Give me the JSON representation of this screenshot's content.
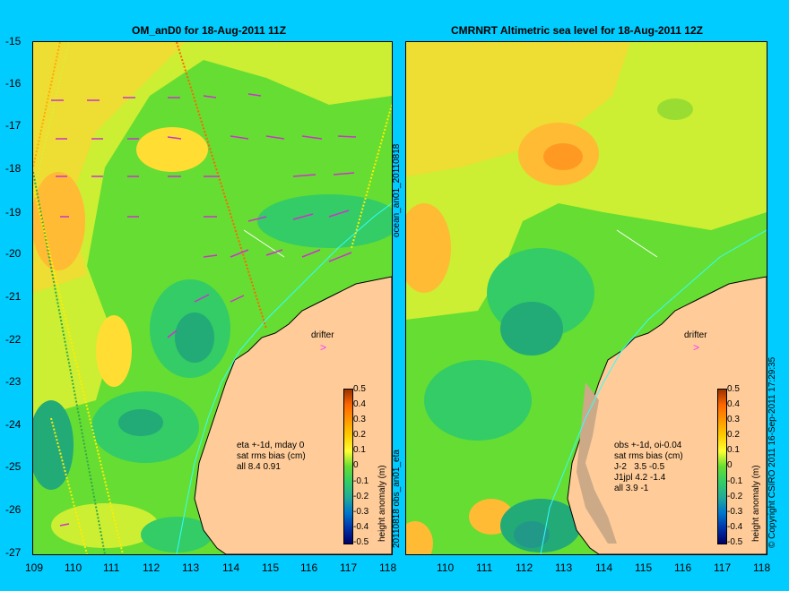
{
  "left_panel": {
    "title": "OM_anD0 for 18-Aug-2011 11Z",
    "drifter_label": "drifter",
    "stats_lines": [
      "eta +-1d, mday 0",
      "sat rms bias (cm)",
      "all 8.4 0.91"
    ]
  },
  "right_panel": {
    "title": "CMRNRT Altimetric sea level  for 18-Aug-2011 12Z",
    "drifter_label": "drifter",
    "stats_lines": [
      "obs +-1d, oi-0.04",
      "sat rms bias (cm)",
      "J-2   3.5 -0.5",
      "J1jpl 4.2 -1.4",
      "all 3.9 -1"
    ]
  },
  "axes": {
    "y_ticks": [
      "-15",
      "-16",
      "-17",
      "-18",
      "-19",
      "-20",
      "-21",
      "-22",
      "-23",
      "-24",
      "-25",
      "-26",
      "-27"
    ],
    "x_ticks": [
      "109",
      "110",
      "111",
      "112",
      "113",
      "114",
      "115",
      "116",
      "117",
      "118"
    ]
  },
  "colorbar": {
    "label": "height anomaly (m)",
    "ticks": [
      "0.5",
      "0.4",
      "0.3",
      "0.2",
      "0.1",
      "0",
      "-0.1",
      "-0.2",
      "-0.3",
      "-0.4",
      "-0.5"
    ]
  },
  "side_labels": {
    "top": "ocean_an01_20110818",
    "bottom": "20110818 obs_an01_eta",
    "copyright": "© Copyright CSIRO 2011   16-Sep-2011 17:29:35"
  },
  "colors": {
    "background": "#00ccff",
    "land": "#ffcc99",
    "arrows": "#cc33cc",
    "coast": "#000000",
    "current": "#33ffff"
  }
}
